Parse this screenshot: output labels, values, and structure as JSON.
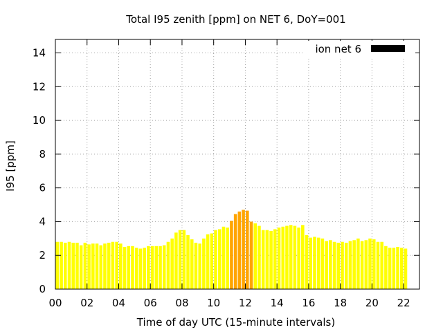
{
  "chart_data": {
    "type": "bar",
    "title": "Total I95 zenith [ppm] on NET 6, DoY=001",
    "xlabel": "Time of day UTC (15-minute intervals)",
    "ylabel": "I95 [ppm]",
    "legend": {
      "label": "ion net 6",
      "color": "#000000",
      "placement": "top-right"
    },
    "xlim": [
      0,
      23
    ],
    "ylim": [
      0,
      14.8
    ],
    "grid": true,
    "interval_hours": 0.25,
    "x_ticks": [
      0,
      2,
      4,
      6,
      8,
      10,
      12,
      14,
      16,
      18,
      20,
      22
    ],
    "x_tick_labels": [
      "00",
      "02",
      "04",
      "06",
      "08",
      "10",
      "12",
      "14",
      "16",
      "18",
      "20",
      "22"
    ],
    "y_ticks": [
      0,
      2,
      4,
      6,
      8,
      10,
      12,
      14
    ],
    "y_tick_labels": [
      "0",
      "2",
      "4",
      "6",
      "8",
      "10",
      "12",
      "14"
    ],
    "colors": {
      "normal": "#ffff00",
      "elevated": "#ffa500"
    },
    "elevated_threshold": 4.0,
    "values": [
      2.8,
      2.8,
      2.75,
      2.8,
      2.75,
      2.75,
      2.6,
      2.75,
      2.65,
      2.7,
      2.7,
      2.6,
      2.7,
      2.75,
      2.8,
      2.8,
      2.7,
      2.5,
      2.55,
      2.55,
      2.45,
      2.4,
      2.45,
      2.55,
      2.55,
      2.55,
      2.55,
      2.6,
      2.8,
      3.0,
      3.35,
      3.5,
      3.5,
      3.2,
      2.95,
      2.75,
      2.7,
      3.0,
      3.25,
      3.3,
      3.5,
      3.55,
      3.7,
      3.65,
      4.05,
      4.45,
      4.6,
      4.7,
      4.65,
      4.0,
      3.9,
      3.75,
      3.5,
      3.5,
      3.45,
      3.55,
      3.65,
      3.7,
      3.75,
      3.8,
      3.75,
      3.65,
      3.8,
      3.2,
      3.05,
      3.1,
      3.05,
      3.0,
      2.85,
      2.9,
      2.8,
      2.75,
      2.8,
      2.75,
      2.85,
      2.9,
      3.0,
      2.85,
      2.9,
      3.0,
      2.95,
      2.8,
      2.8,
      2.55,
      2.45,
      2.45,
      2.5,
      2.45,
      2.4
    ]
  }
}
